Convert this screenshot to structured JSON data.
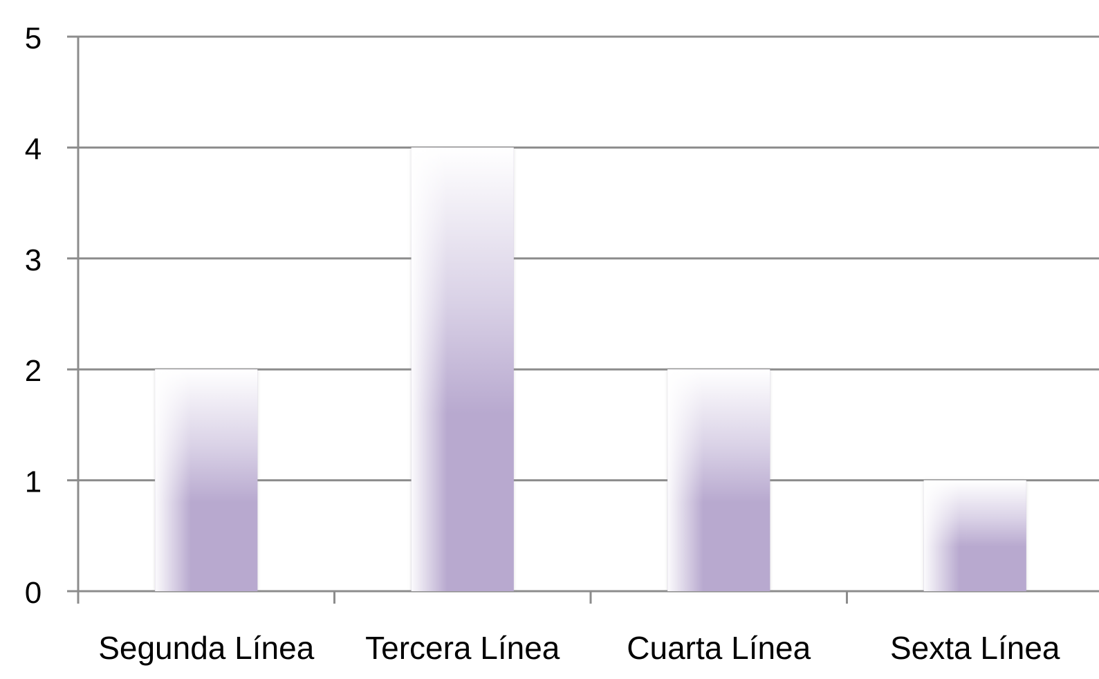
{
  "chart_data": {
    "type": "bar",
    "categories": [
      "Segunda Línea",
      "Tercera Línea",
      "Cuarta Línea",
      "Sexta Línea"
    ],
    "values": [
      2,
      4,
      2,
      1
    ],
    "yticks": [
      "0",
      "1",
      "2",
      "3",
      "4",
      "5"
    ],
    "ylim": [
      0,
      5
    ],
    "grid": true,
    "bar_color": "#b8a9cf",
    "bar_highlight": "#ffffff",
    "axis_color": "#8c8c8c"
  }
}
